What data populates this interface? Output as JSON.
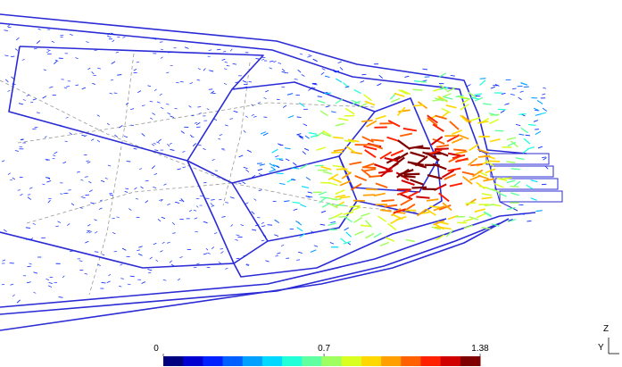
{
  "colorbar": {
    "lim": [
      0,
      1.38
    ],
    "ticks": [
      0,
      0.7,
      1.38
    ],
    "colors": [
      "#00007f",
      "#0000d0",
      "#0020ff",
      "#0060ff",
      "#00a0ff",
      "#00d8ff",
      "#20ffd8",
      "#60ffa0",
      "#a0ff60",
      "#d8ff20",
      "#ffd800",
      "#ffa000",
      "#ff6000",
      "#ff2000",
      "#d00000",
      "#7f0000"
    ]
  },
  "triad": {
    "z": "Z",
    "y": "Y"
  }
}
